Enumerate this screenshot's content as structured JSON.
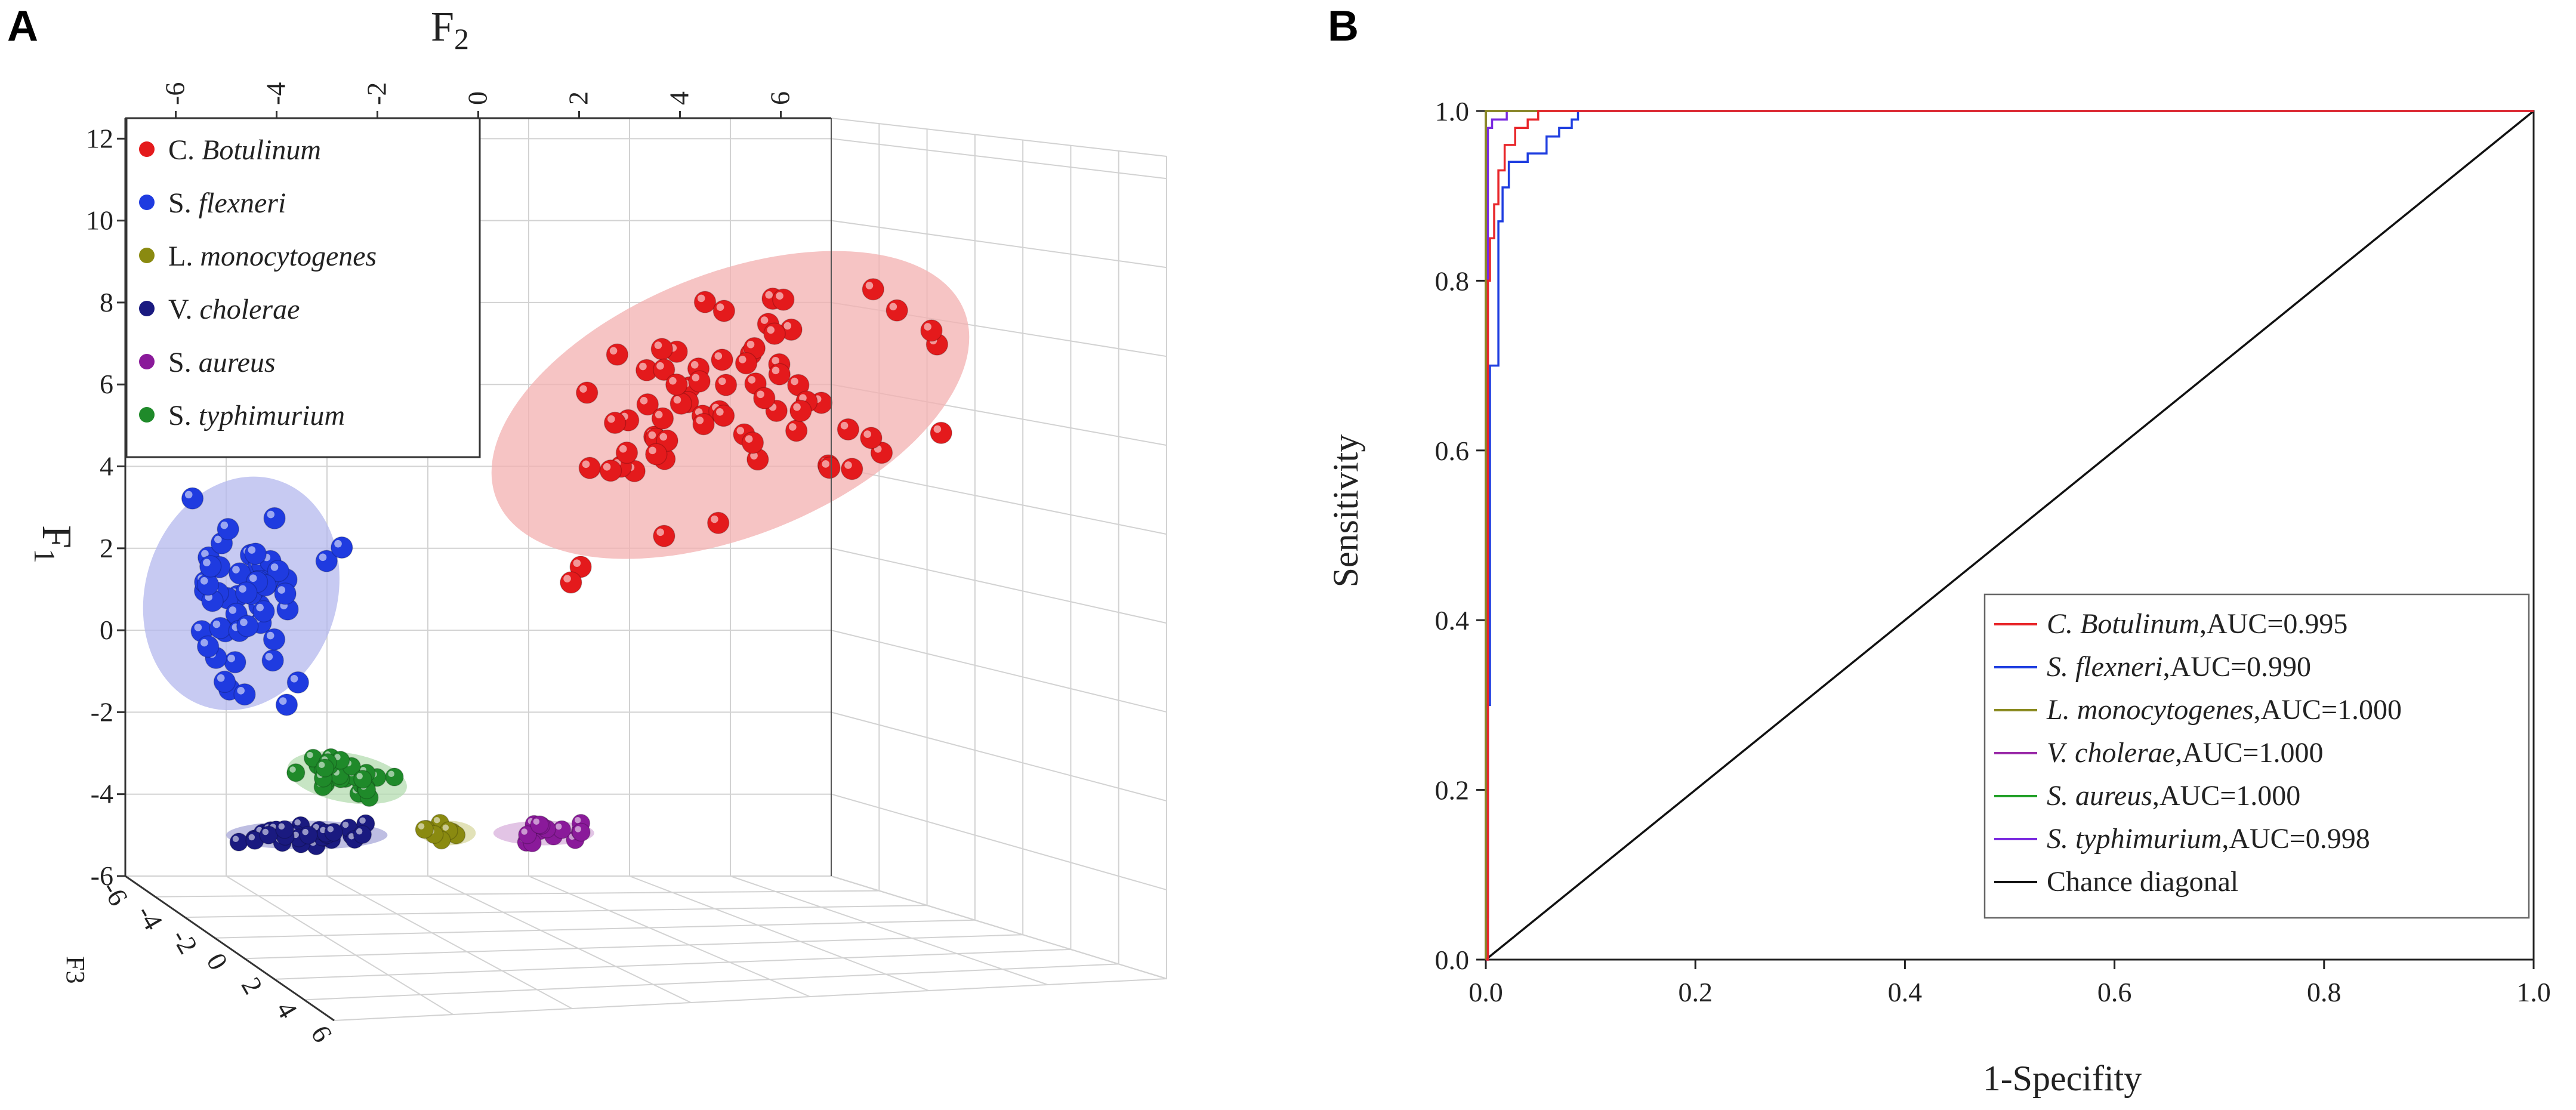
{
  "panels": {
    "a_label": "A",
    "b_label": "B"
  },
  "chart_data": [
    {
      "type": "scatter",
      "subtype": "3d-scatter-with-confidence-ellipses",
      "title": "",
      "axes": {
        "y_label": "F1",
        "y_label_main": "F",
        "y_label_sub": "1",
        "x_label": "F2",
        "x_label_main": "F",
        "x_label_sub": "2",
        "z_label": "F3",
        "y_ticks": [
          "12",
          "10",
          "8",
          "6",
          "4",
          "2",
          "0",
          "-2",
          "-4",
          "-6"
        ],
        "x_ticks": [
          "-6",
          "-4",
          "-2",
          "0",
          "2",
          "4",
          "6"
        ],
        "z_ticks": [
          "-6",
          "-4",
          "-2",
          "0",
          "2",
          "4",
          "6"
        ],
        "ylim": [
          -6,
          12.5
        ],
        "xlim": [
          -7,
          7
        ]
      },
      "legend": [
        {
          "name_prefix": "C. ",
          "name_italic": "Botulinum",
          "color": "#e41a1c"
        },
        {
          "name_prefix": "S. ",
          "name_italic": "flexneri",
          "color": "#1f3be0"
        },
        {
          "name_prefix": "L. ",
          "name_italic": "monocytogenes",
          "color": "#8a8a10"
        },
        {
          "name_prefix": "V. ",
          "name_italic": "cholerae",
          "color": "#1a1a80"
        },
        {
          "name_prefix": "S. ",
          "name_italic": "aureus",
          "color": "#8a1a9a"
        },
        {
          "name_prefix": "S. ",
          "name_italic": "typhimurium",
          "color": "#1f8a2a"
        }
      ],
      "clusters": [
        {
          "name": "C. Botulinum",
          "color": "#e41a1c",
          "fill": "#f3b0b0",
          "center": [
            5.0,
            5.5
          ],
          "spread": [
            5.0,
            3.2
          ],
          "angle": -22,
          "count": 70
        },
        {
          "name": "S. flexneri",
          "color": "#1f3be0",
          "fill": "#b4b8ee",
          "center": [
            -4.7,
            0.9
          ],
          "spread": [
            1.9,
            2.9
          ],
          "angle": 18,
          "count": 55
        },
        {
          "name": "S. typhimurium",
          "color": "#1f8a2a",
          "fill": "#b4dcb0",
          "center": [
            -2.6,
            -3.6
          ],
          "spread": [
            1.2,
            0.6
          ],
          "angle": 10,
          "count": 30
        },
        {
          "name": "V. cholerae",
          "color": "#1a1a80",
          "fill": "#a8a8d8",
          "center": [
            -3.4,
            -5.0
          ],
          "spread": [
            1.6,
            0.35
          ],
          "angle": 0,
          "count": 32
        },
        {
          "name": "L. monocytogenes",
          "color": "#8a8a10",
          "fill": "#d8d8a0",
          "center": [
            -0.6,
            -4.95
          ],
          "spread": [
            0.55,
            0.3
          ],
          "angle": 0,
          "count": 8
        },
        {
          "name": "S. aureus",
          "color": "#8a1a9a",
          "fill": "#d8b0dc",
          "center": [
            1.3,
            -4.95
          ],
          "spread": [
            1.0,
            0.3
          ],
          "angle": 0,
          "count": 14
        }
      ]
    },
    {
      "type": "line",
      "subtype": "roc",
      "title": "",
      "xlabel": "1-Specifity",
      "ylabel": "Sensitivity",
      "xlim": [
        0,
        1
      ],
      "ylim": [
        0,
        1
      ],
      "x_ticks": [
        "0.0",
        "0.2",
        "0.4",
        "0.6",
        "0.8",
        "1.0"
      ],
      "y_ticks": [
        "0.0",
        "0.2",
        "0.4",
        "0.6",
        "0.8",
        "1.0"
      ],
      "series": [
        {
          "name_italic": "C. Botulinum",
          "name_suffix": ",AUC=0.995",
          "color": "#e8262a",
          "x": [
            0,
            0.002,
            0.002,
            0.004,
            0.004,
            0.008,
            0.008,
            0.012,
            0.012,
            0.018,
            0.018,
            0.028,
            0.028,
            0.04,
            0.04,
            0.05,
            0.05,
            1.0
          ],
          "y": [
            0,
            0,
            0.8,
            0.8,
            0.85,
            0.85,
            0.89,
            0.89,
            0.93,
            0.93,
            0.96,
            0.96,
            0.98,
            0.98,
            0.99,
            0.99,
            1.0,
            1.0
          ]
        },
        {
          "name_italic": "S. flexneri",
          "name_suffix": ",AUC=0.990",
          "color": "#1f3ee0",
          "x": [
            0,
            0.002,
            0.002,
            0.004,
            0.004,
            0.012,
            0.012,
            0.016,
            0.016,
            0.022,
            0.022,
            0.04,
            0.04,
            0.058,
            0.058,
            0.07,
            0.07,
            0.082,
            0.082,
            0.088,
            0.088,
            1.0
          ],
          "y": [
            0,
            0,
            0.3,
            0.3,
            0.7,
            0.7,
            0.87,
            0.87,
            0.91,
            0.91,
            0.94,
            0.94,
            0.95,
            0.95,
            0.97,
            0.97,
            0.98,
            0.98,
            0.99,
            0.99,
            1.0,
            1.0
          ]
        },
        {
          "name_italic": "L. monocytogenes",
          "name_suffix": ",AUC=1.000",
          "color": "#8a8a20",
          "x": [
            0,
            0,
            1.0
          ],
          "y": [
            0,
            1.0,
            1.0
          ]
        },
        {
          "name_italic": "V. cholerae",
          "name_suffix": ",AUC=1.000",
          "color": "#9a2aa8",
          "x": [
            0,
            0,
            1.0
          ],
          "y": [
            0,
            1.0,
            1.0
          ]
        },
        {
          "name_italic": "S. aureus",
          "name_suffix": ",AUC=1.000",
          "color": "#22a028",
          "x": [
            0,
            0,
            1.0
          ],
          "y": [
            0,
            1.0,
            1.0
          ]
        },
        {
          "name_italic": "S. typhimurium",
          "name_suffix": ",AUC=0.998",
          "color": "#7a2ae0",
          "x": [
            0,
            0.002,
            0.002,
            0.006,
            0.006,
            0.02,
            0.02,
            1.0
          ],
          "y": [
            0.05,
            0.05,
            0.98,
            0.98,
            0.99,
            0.99,
            1.0,
            1.0
          ]
        },
        {
          "name_italic": "",
          "name_suffix": "Chance diagonal",
          "color": "#111111",
          "x": [
            0,
            1
          ],
          "y": [
            0,
            1
          ]
        }
      ]
    }
  ]
}
